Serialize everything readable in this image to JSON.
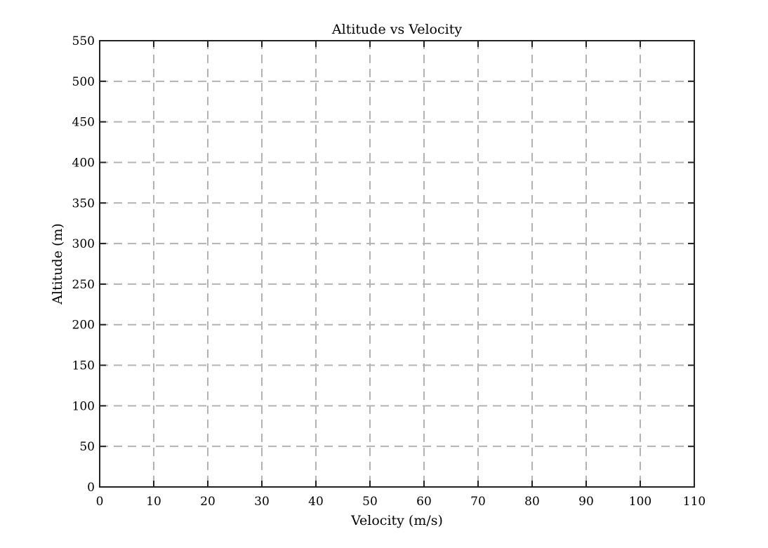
{
  "chart_data": {
    "type": "line",
    "title": "Altitude vs Velocity",
    "xlabel": "Velocity (m/s)",
    "ylabel": "Altitude (m)",
    "xlim": [
      0,
      110
    ],
    "ylim": [
      0,
      550
    ],
    "xticks": [
      "0",
      "10",
      "20",
      "30",
      "40",
      "50",
      "60",
      "70",
      "80",
      "90",
      "100",
      "110"
    ],
    "yticks": [
      "0",
      "50",
      "100",
      "150",
      "200",
      "250",
      "300",
      "350",
      "400",
      "450",
      "500",
      "550"
    ],
    "grid": true,
    "series": []
  },
  "colors": {
    "axes": "#222222",
    "grid": "#b3b3b3",
    "background": "#ffffff"
  }
}
